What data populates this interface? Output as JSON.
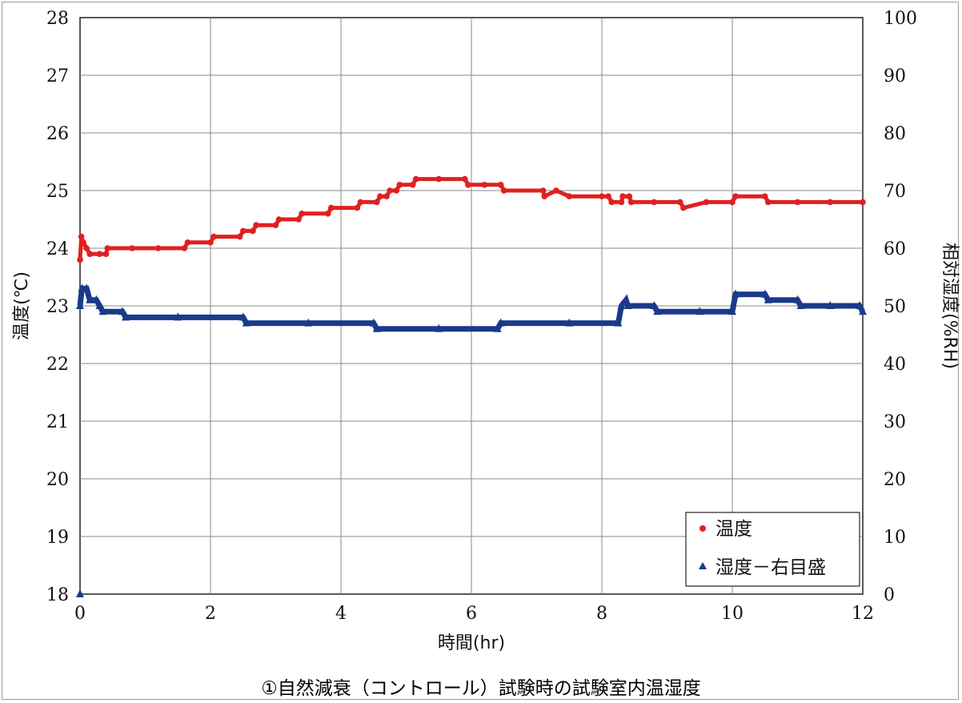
{
  "caption": "①自然減衰（コントロール）試験時の試験室内温湿度",
  "chart_data": {
    "type": "scatter",
    "xlabel": "時間(hr)",
    "ylabel_left": "温度(℃)",
    "ylabel_right": "相対湿度(%RH)",
    "xlim": [
      0,
      12
    ],
    "ylim_left": [
      18,
      28
    ],
    "ylim_right": [
      0,
      100
    ],
    "x_ticks": [
      "0",
      "2",
      "4",
      "6",
      "8",
      "10",
      "12"
    ],
    "y_ticks_left": [
      "18",
      "19",
      "20",
      "21",
      "22",
      "23",
      "24",
      "25",
      "26",
      "27",
      "28"
    ],
    "y_ticks_right": [
      "0",
      "10",
      "20",
      "30",
      "40",
      "50",
      "60",
      "70",
      "80",
      "90",
      "100"
    ],
    "grid": true,
    "legend_position": "bottom-right",
    "series": [
      {
        "name": "温度",
        "axis": "left",
        "color": "#e02020",
        "marker": "circle",
        "points": [
          [
            0.0,
            23.8
          ],
          [
            0.02,
            24.2
          ],
          [
            0.05,
            24.1
          ],
          [
            0.1,
            24.0
          ],
          [
            0.15,
            23.9
          ],
          [
            0.3,
            23.9
          ],
          [
            0.4,
            23.9
          ],
          [
            0.42,
            24.0
          ],
          [
            0.8,
            24.0
          ],
          [
            1.2,
            24.0
          ],
          [
            1.6,
            24.0
          ],
          [
            1.65,
            24.1
          ],
          [
            2.0,
            24.1
          ],
          [
            2.05,
            24.2
          ],
          [
            2.45,
            24.2
          ],
          [
            2.5,
            24.3
          ],
          [
            2.65,
            24.3
          ],
          [
            2.7,
            24.4
          ],
          [
            3.0,
            24.4
          ],
          [
            3.05,
            24.5
          ],
          [
            3.35,
            24.5
          ],
          [
            3.4,
            24.6
          ],
          [
            3.8,
            24.6
          ],
          [
            3.85,
            24.7
          ],
          [
            4.25,
            24.7
          ],
          [
            4.3,
            24.8
          ],
          [
            4.55,
            24.8
          ],
          [
            4.6,
            24.9
          ],
          [
            4.7,
            24.9
          ],
          [
            4.75,
            25.0
          ],
          [
            4.85,
            25.0
          ],
          [
            4.9,
            25.1
          ],
          [
            5.1,
            25.1
          ],
          [
            5.15,
            25.2
          ],
          [
            5.5,
            25.2
          ],
          [
            5.9,
            25.2
          ],
          [
            5.95,
            25.1
          ],
          [
            6.2,
            25.1
          ],
          [
            6.45,
            25.1
          ],
          [
            6.5,
            25.0
          ],
          [
            7.1,
            25.0
          ],
          [
            7.3,
            25.0
          ],
          [
            7.12,
            24.9
          ],
          [
            7.5,
            24.9
          ],
          [
            8.0,
            24.9
          ],
          [
            8.1,
            24.9
          ],
          [
            8.15,
            24.8
          ],
          [
            8.3,
            24.8
          ],
          [
            8.32,
            24.9
          ],
          [
            8.42,
            24.9
          ],
          [
            8.45,
            24.8
          ],
          [
            8.8,
            24.8
          ],
          [
            9.2,
            24.8
          ],
          [
            9.6,
            24.8
          ],
          [
            10.0,
            24.8
          ],
          [
            9.25,
            24.7
          ],
          [
            10.05,
            24.9
          ],
          [
            10.5,
            24.9
          ],
          [
            10.55,
            24.8
          ],
          [
            11.0,
            24.8
          ],
          [
            11.5,
            24.8
          ],
          [
            12.0,
            24.8
          ]
        ]
      },
      {
        "name": "湿度－右目盛",
        "axis": "right",
        "color": "#1a3a8a",
        "marker": "triangle",
        "points": [
          [
            0.0,
            0
          ],
          [
            0.0,
            50
          ],
          [
            0.03,
            53
          ],
          [
            0.1,
            53
          ],
          [
            0.15,
            51
          ],
          [
            0.25,
            51
          ],
          [
            0.3,
            50
          ],
          [
            0.35,
            49
          ],
          [
            0.65,
            49
          ],
          [
            0.7,
            48
          ],
          [
            1.5,
            48
          ],
          [
            2.5,
            48
          ],
          [
            2.55,
            47
          ],
          [
            3.5,
            47
          ],
          [
            4.5,
            47
          ],
          [
            4.55,
            46
          ],
          [
            5.5,
            46
          ],
          [
            6.4,
            46
          ],
          [
            6.45,
            47
          ],
          [
            7.5,
            47
          ],
          [
            8.25,
            47
          ],
          [
            8.3,
            50
          ],
          [
            8.37,
            51
          ],
          [
            8.4,
            50
          ],
          [
            8.8,
            50
          ],
          [
            8.85,
            49
          ],
          [
            9.5,
            49
          ],
          [
            10.0,
            49
          ],
          [
            10.05,
            52
          ],
          [
            10.5,
            52
          ],
          [
            10.55,
            51
          ],
          [
            11.0,
            51
          ],
          [
            11.05,
            50
          ],
          [
            11.5,
            50
          ],
          [
            11.95,
            50
          ],
          [
            12.0,
            49
          ]
        ]
      }
    ]
  }
}
